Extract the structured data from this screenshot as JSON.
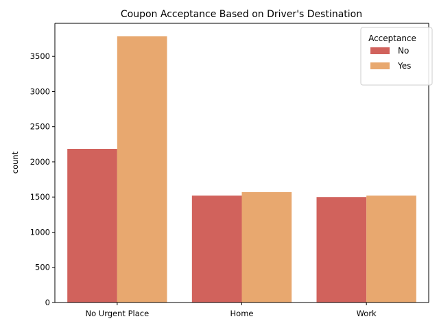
{
  "chart_data": {
    "type": "bar",
    "title": "Coupon Acceptance Based on Driver's Destination",
    "xlabel": "",
    "ylabel": "count",
    "categories": [
      "No Urgent Place",
      "Home",
      "Work"
    ],
    "series": [
      {
        "name": "No",
        "values": [
          2185,
          1520,
          1500
        ],
        "color": "#d1625c"
      },
      {
        "name": "Yes",
        "values": [
          3785,
          1570,
          1520
        ],
        "color": "#e8a86f"
      }
    ],
    "ylim": [
      0,
      3970
    ],
    "yticks": [
      0,
      500,
      1000,
      1500,
      2000,
      2500,
      3000,
      3500
    ],
    "legend": {
      "title": "Acceptance",
      "placement": "top-right"
    },
    "grid": false
  }
}
